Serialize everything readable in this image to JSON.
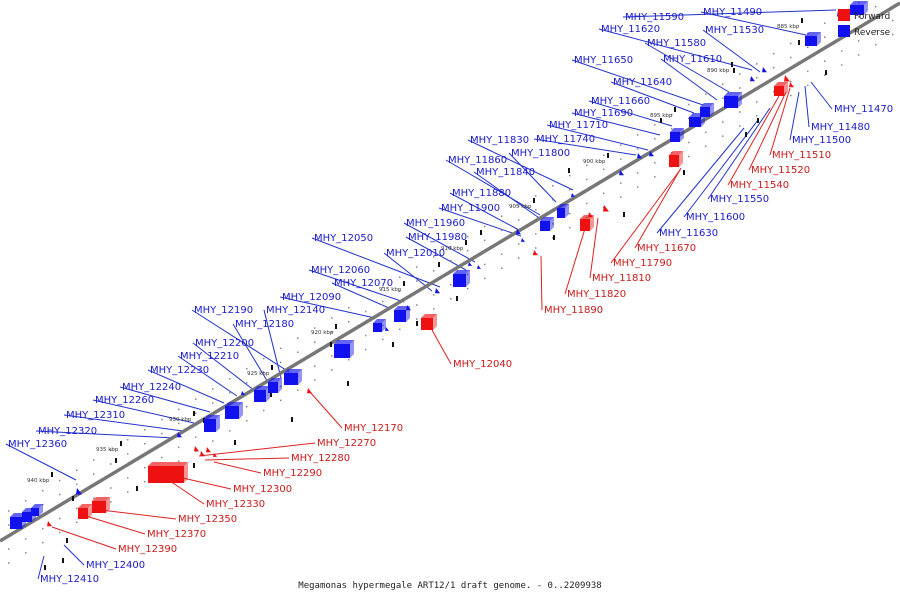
{
  "colors": {
    "forward": "#ee1111",
    "reverse": "#1111ee",
    "leader_fwd": "#dd2222",
    "leader_rev": "#2233cc",
    "axis": "#777777"
  },
  "legend": {
    "forward": "Forward",
    "reverse": "Reverse"
  },
  "footer": "Megamonas hypermegale ART12/1 draft genome. - 0..2209938",
  "kbp_ticks": [
    "885 kbp",
    "890 kbp",
    "895 kbp",
    "900 kbp",
    "905 kbp",
    "910 kbp",
    "915 kbp",
    "920 kbp",
    "925 kbp",
    "930 kbp",
    "935 kbp",
    "940 kbp"
  ],
  "reverse_genes": [
    "MHY_11490",
    "MHY_11590",
    "MHY_11530",
    "MHY_11620",
    "MHY_11580",
    "MHY_11610",
    "MHY_11650",
    "MHY_11640",
    "MHY_11660",
    "MHY_11690",
    "MHY_11710",
    "MHY_11740",
    "MHY_11830",
    "MHY_11800",
    "MHY_11860",
    "MHY_11840",
    "MHY_11880",
    "MHY_11900",
    "MHY_11960",
    "MHY_11980",
    "MHY_12050",
    "MHY_12010",
    "MHY_12060",
    "MHY_12070",
    "MHY_12090",
    "MHY_12190",
    "MHY_12140",
    "MHY_12180",
    "MHY_12200",
    "MHY_12210",
    "MHY_12230",
    "MHY_12240",
    "MHY_12260",
    "MHY_12310",
    "MHY_12320",
    "MHY_12360",
    "MHY_11470",
    "MHY_11480",
    "MHY_11500",
    "MHY_11550",
    "MHY_11600",
    "MHY_11630",
    "MHY_12400",
    "MHY_12410"
  ],
  "forward_genes": [
    "MHY_11510",
    "MHY_11520",
    "MHY_11540",
    "MHY_11670",
    "MHY_11790",
    "MHY_11810",
    "MHY_11820",
    "MHY_11890",
    "MHY_12040",
    "MHY_12170",
    "MHY_12270",
    "MHY_12280",
    "MHY_12290",
    "MHY_12300",
    "MHY_12330",
    "MHY_12350",
    "MHY_12370",
    "MHY_12390"
  ]
}
